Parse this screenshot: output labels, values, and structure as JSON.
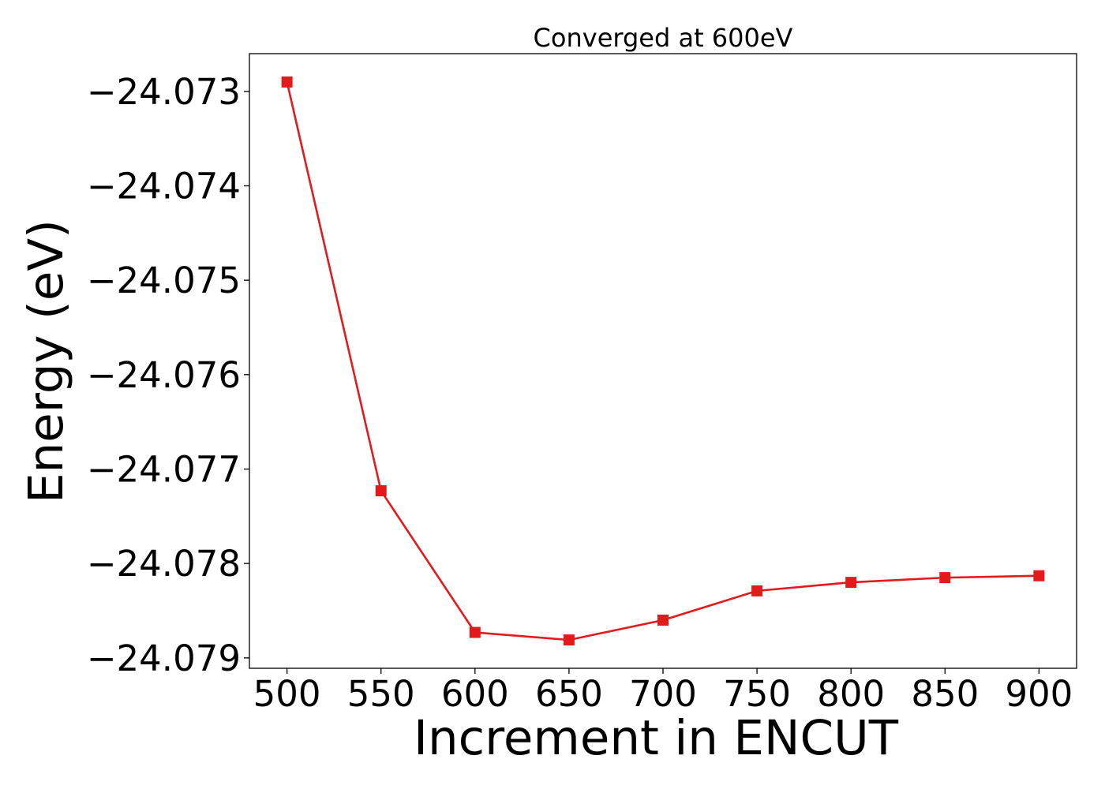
{
  "chart_data": {
    "type": "line",
    "title": "Converged at 600eV",
    "xlabel": "Increment in ENCUT",
    "ylabel": "Energy (eV)",
    "x": [
      500,
      550,
      600,
      650,
      700,
      750,
      800,
      850,
      900
    ],
    "series": [
      {
        "values": [
          -24.0729,
          -24.07723,
          -24.07873,
          -24.07881,
          -24.0786,
          -24.07829,
          -24.0782,
          -24.07815,
          -24.07813
        ],
        "color": "#e31a1c",
        "marker": "square"
      }
    ],
    "xticks": [
      500,
      550,
      600,
      650,
      700,
      750,
      800,
      850,
      900
    ],
    "xtick_labels": [
      "500",
      "550",
      "600",
      "650",
      "700",
      "750",
      "800",
      "850",
      "900"
    ],
    "yticks": [
      -24.073,
      -24.074,
      -24.075,
      -24.076,
      -24.077,
      -24.078,
      -24.079
    ],
    "ytick_labels": [
      "−24.073",
      "−24.074",
      "−24.075",
      "−24.076",
      "−24.077",
      "−24.078",
      "−24.079"
    ],
    "xlim": [
      480,
      920
    ],
    "ylim": [
      -24.07911,
      -24.0726
    ],
    "grid": false,
    "legend": "none"
  }
}
